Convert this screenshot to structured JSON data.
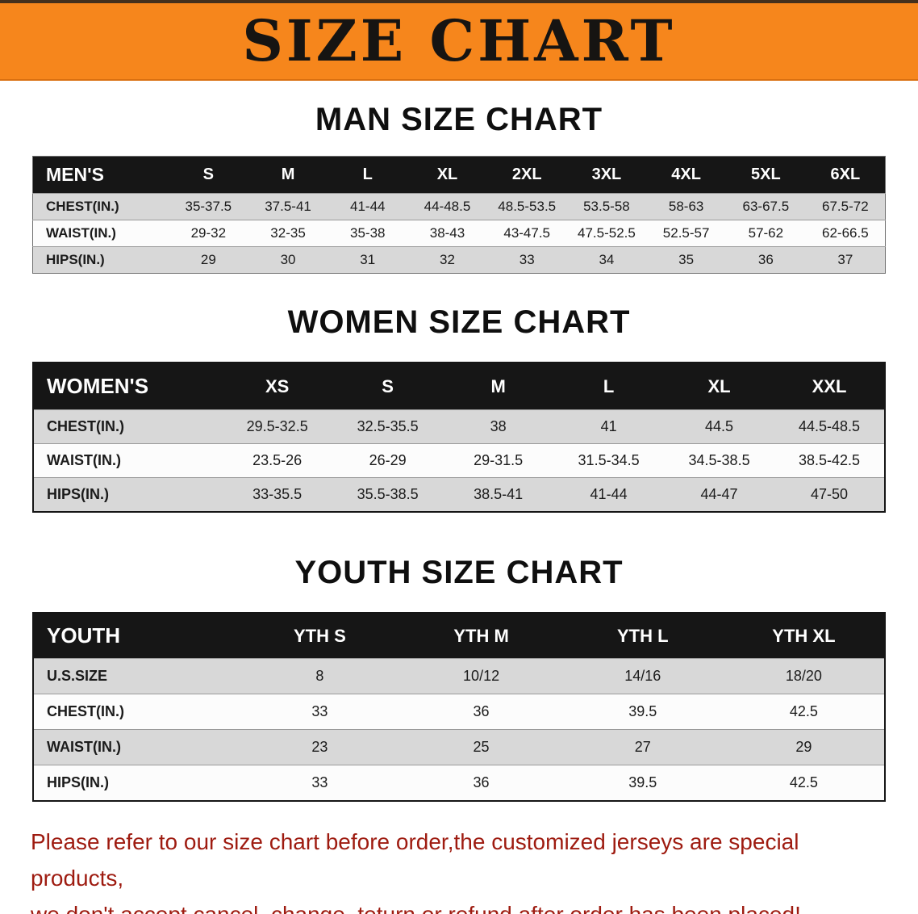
{
  "banner": {
    "title": "SIZE CHART"
  },
  "sections": [
    {
      "heading": "MAN SIZE CHART",
      "table": {
        "header": [
          "MEN'S",
          "S",
          "M",
          "L",
          "XL",
          "2XL",
          "3XL",
          "4XL",
          "5XL",
          "6XL"
        ],
        "rows": [
          {
            "label": "CHEST(IN.)",
            "values": [
              "35-37.5",
              "37.5-41",
              "41-44",
              "44-48.5",
              "48.5-53.5",
              "53.5-58",
              "58-63",
              "63-67.5",
              "67.5-72"
            ]
          },
          {
            "label": "WAIST(IN.)",
            "values": [
              "29-32",
              "32-35",
              "35-38",
              "38-43",
              "43-47.5",
              "47.5-52.5",
              "52.5-57",
              "57-62",
              "62-66.5"
            ]
          },
          {
            "label": "HIPS(IN.)",
            "values": [
              "29",
              "30",
              "31",
              "32",
              "33",
              "34",
              "35",
              "36",
              "37"
            ]
          }
        ]
      }
    },
    {
      "heading": "WOMEN SIZE CHART",
      "table": {
        "header": [
          "WOMEN'S",
          "XS",
          "S",
          "M",
          "L",
          "XL",
          "XXL"
        ],
        "rows": [
          {
            "label": "CHEST(IN.)",
            "values": [
              "29.5-32.5",
              "32.5-35.5",
              "38",
              "41",
              "44.5",
              "44.5-48.5"
            ]
          },
          {
            "label": "WAIST(IN.)",
            "values": [
              "23.5-26",
              "26-29",
              "29-31.5",
              "31.5-34.5",
              "34.5-38.5",
              "38.5-42.5"
            ]
          },
          {
            "label": "HIPS(IN.)",
            "values": [
              "33-35.5",
              "35.5-38.5",
              "38.5-41",
              "41-44",
              "44-47",
              "47-50"
            ]
          }
        ]
      }
    },
    {
      "heading": "YOUTH SIZE CHART",
      "table": {
        "header": [
          "YOUTH",
          "YTH S",
          "YTH M",
          "YTH L",
          "YTH XL"
        ],
        "rows": [
          {
            "label": "U.S.SIZE",
            "values": [
              "8",
              "10/12",
              "14/16",
              "18/20"
            ]
          },
          {
            "label": "CHEST(IN.)",
            "values": [
              "33",
              "36",
              "39.5",
              "42.5"
            ]
          },
          {
            "label": "WAIST(IN.)",
            "values": [
              "23",
              "25",
              "27",
              "29"
            ]
          },
          {
            "label": "HIPS(IN.)",
            "values": [
              "33",
              "36",
              "39.5",
              "42.5"
            ]
          }
        ]
      }
    }
  ],
  "footer": {
    "line1": "Please refer to our size chart before order,the customized jerseys are special products,",
    "line2": "we don't accept cancel, change, teturn or refund after order has been placed!"
  },
  "colors": {
    "banner_bg": "#F6861C",
    "table_header_bg": "#161616",
    "row_alt_bg": "#D8D8D8",
    "footer_text": "#9E1B10"
  }
}
